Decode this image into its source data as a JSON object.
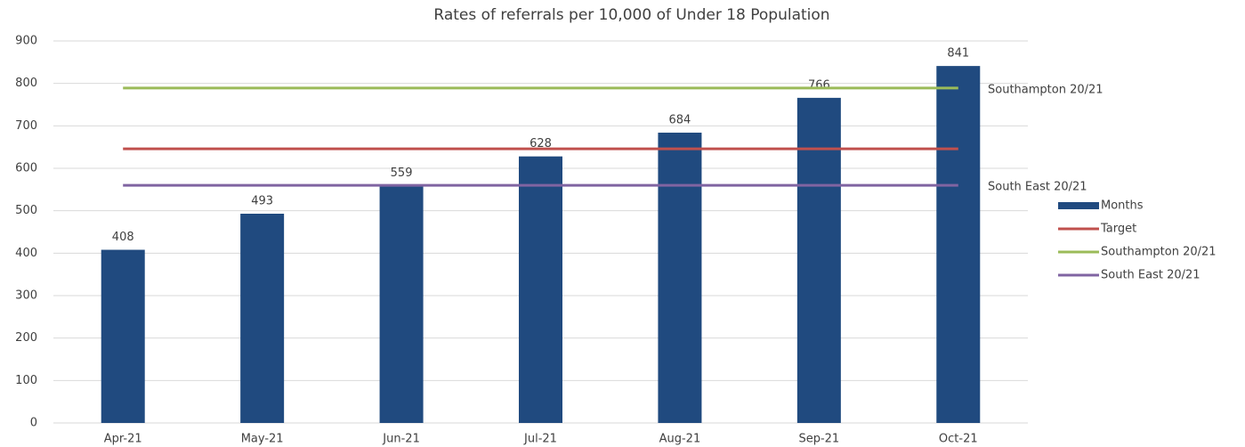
{
  "chart_data": {
    "type": "bar",
    "title": "Rates of referrals per 10,000 of Under 18 Population",
    "categories": [
      "Apr-21",
      "May-21",
      "Jun-21",
      "Jul-21",
      "Aug-21",
      "Sep-21",
      "Oct-21"
    ],
    "series": [
      {
        "name": "Months",
        "type": "bar",
        "color": "#204a7f",
        "values": [
          408,
          493,
          559,
          628,
          684,
          766,
          841
        ]
      },
      {
        "name": "Target",
        "type": "line",
        "color": "#c0504d",
        "values": [
          646,
          646,
          646,
          646,
          646,
          646,
          646
        ]
      },
      {
        "name": "Southampton 20/21",
        "type": "line",
        "color": "#9bbb59",
        "values": [
          789,
          789,
          789,
          789,
          789,
          789,
          789
        ]
      },
      {
        "name": "South East 20/21",
        "type": "line",
        "color": "#8064a2",
        "values": [
          560,
          560,
          560,
          560,
          560,
          560,
          560
        ]
      }
    ],
    "annotations": [
      "Southampton 20/21",
      "South East 20/21"
    ],
    "ylim": [
      0,
      900
    ],
    "yticks": [
      0,
      100,
      200,
      300,
      400,
      500,
      600,
      700,
      800,
      900
    ],
    "grid": true,
    "legend": "right"
  }
}
